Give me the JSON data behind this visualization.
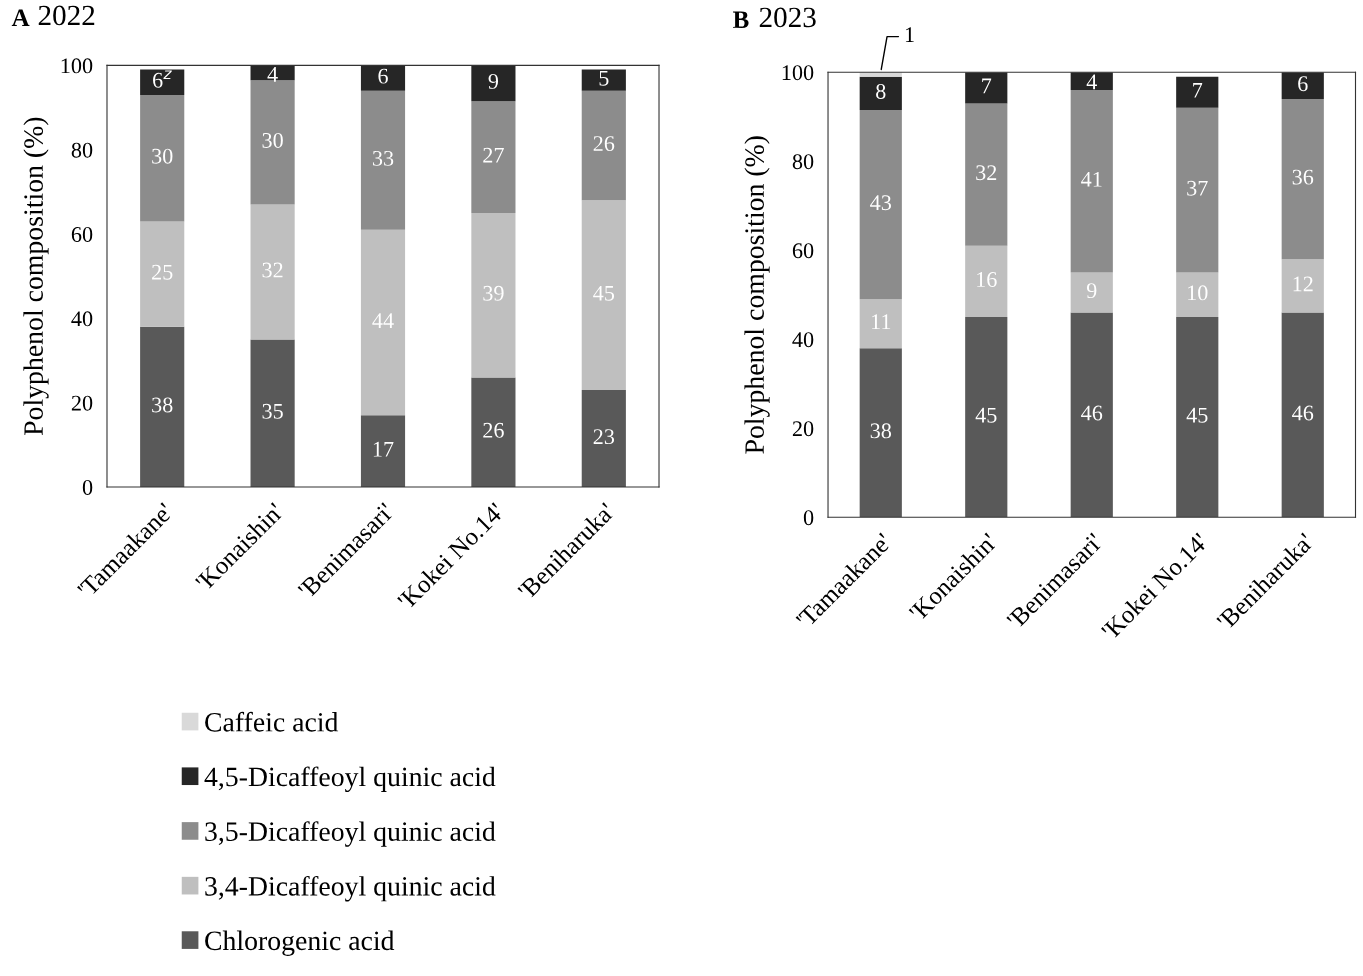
{
  "chart_data": [
    {
      "type": "bar",
      "title": "A 2022",
      "ylabel": "Polyphenol composition (%)",
      "stacked": true,
      "legend": "bottom",
      "categories": [
        "'Tamaakane'",
        "'Konaishin'",
        "'Benimasari'",
        "'Kokei No.14'",
        "'Beniharuka'"
      ],
      "ylim": [
        0,
        100
      ],
      "yticks": [
        0,
        20,
        40,
        60,
        80,
        100
      ],
      "grid": false,
      "series": [
        {
          "name": "Chlorogenic acid",
          "color": "#595959",
          "values": [
            38,
            35,
            17,
            26,
            23
          ],
          "value_labels": [
            "38",
            "35",
            "17",
            "26",
            "23"
          ]
        },
        {
          "name": "3,4-Dicaffeoyl quinic acid",
          "color": "#bfbfbf",
          "values": [
            25,
            32,
            44,
            39,
            45
          ],
          "value_labels": [
            "25",
            "32",
            "44",
            "39",
            "45"
          ]
        },
        {
          "name": "3,5-Dicaffeoyl quinic acid",
          "color": "#8c8c8c",
          "values": [
            30,
            29.5,
            33,
            26.5,
            26
          ],
          "value_labels": [
            "30",
            "30",
            "33",
            "27",
            "26"
          ]
        },
        {
          "name": "4,5-Dicaffeoyl quinic acid",
          "color": "#262626",
          "values": [
            6,
            3.5,
            6,
            8.5,
            5
          ],
          "value_labels": [
            "6$^{z}$",
            "4",
            "6",
            "9",
            "5"
          ]
        },
        {
          "name": "Caffeic acid",
          "color": "#d9d9d9",
          "values": [
            null,
            null,
            null,
            null,
            null
          ]
        }
      ]
    },
    {
      "type": "bar",
      "title": "B 2023",
      "ylabel": "Polyphenol composition (%)",
      "stacked": true,
      "categories": [
        "'Tamaakane'",
        "'Konaishin'",
        "'Benimasari'",
        "'Kokei No.14'",
        "'Beniharuka'"
      ],
      "ylim": [
        0,
        100
      ],
      "yticks": [
        0,
        20,
        40,
        60,
        80,
        100
      ],
      "grid": false,
      "series": [
        {
          "color": "#595959",
          "values": [
            38,
            45,
            46,
            45,
            46
          ],
          "value_labels": [
            "38",
            "45",
            "46",
            "45",
            "46"
          ]
        },
        {
          "color": "#bfbfbf",
          "values": [
            11,
            16,
            9,
            10,
            12
          ],
          "value_labels": [
            "11",
            "16",
            "9",
            "10",
            "12"
          ]
        },
        {
          "color": "#8c8c8c",
          "values": [
            42.5,
            32,
            41,
            37,
            36
          ],
          "value_labels": [
            "43",
            "32",
            "41",
            "37",
            "36"
          ]
        },
        {
          "color": "#262626",
          "values": [
            7.5,
            7,
            4,
            7,
            6
          ],
          "value_labels": [
            "8",
            "7",
            "4",
            "7",
            "6"
          ]
        },
        {
          "color": "#d9d9d9",
          "values": [
            1,
            null,
            null,
            null,
            null
          ],
          "value_labels": [
            "1",
            null,
            null,
            null,
            null
          ]
        }
      ]
    }
  ]
}
